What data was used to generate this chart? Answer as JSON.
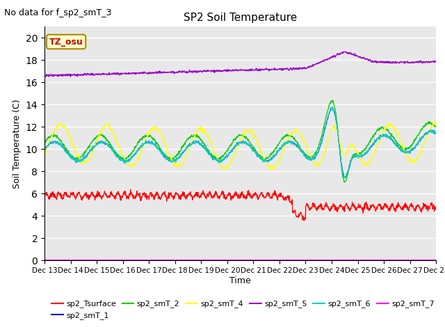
{
  "title": "SP2 Soil Temperature",
  "no_data_text": "No data for f_sp2_smT_3",
  "tz_label": "TZ_osu",
  "xlabel": "Time",
  "ylabel": "Soil Temperature (C)",
  "ylim": [
    0,
    21
  ],
  "yticks": [
    0,
    2,
    4,
    6,
    8,
    10,
    12,
    14,
    16,
    18,
    20
  ],
  "bg_color": "#e8e8e8",
  "line_colors": {
    "sp2_Tsurface": "#ff0000",
    "sp2_smT_1": "#0000cc",
    "sp2_smT_2": "#00cc00",
    "sp2_smT_4": "#ffff00",
    "sp2_smT_5": "#9900cc",
    "sp2_smT_6": "#00cccc",
    "sp2_smT_7": "#ff00ff"
  },
  "fig_width": 6.4,
  "fig_height": 4.8,
  "dpi": 100
}
